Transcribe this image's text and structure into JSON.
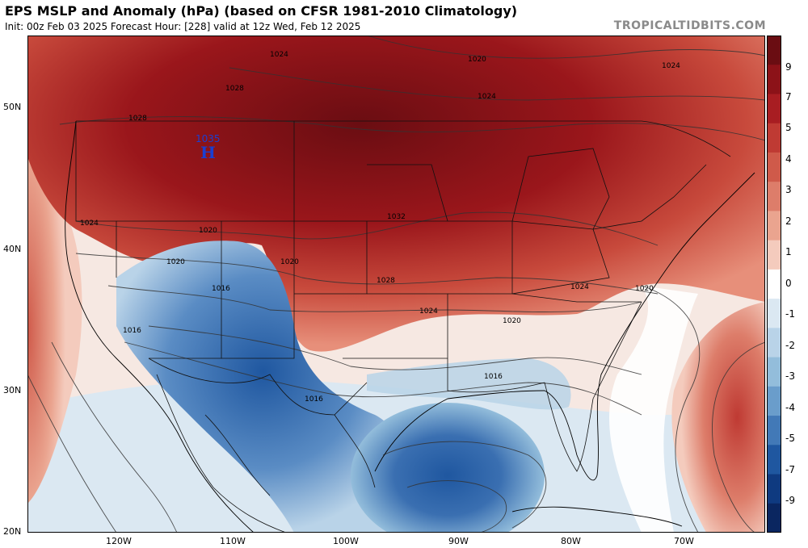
{
  "header": {
    "title": "EPS MSLP and Anomaly (hPa) (based on CFSR 1981-2010 Climatology)",
    "subtitle": "Init: 00z Feb 03 2025   Forecast Hour: [228]   valid at 12z Wed, Feb 12 2025",
    "brand": "TROPICALTIDBITS.COM"
  },
  "map": {
    "high_center": {
      "label": "H",
      "value": "1035"
    },
    "isobar_labels": [
      "1024",
      "1020",
      "1024",
      "1028",
      "1028",
      "1024",
      "1024",
      "1020",
      "1032",
      "1028",
      "1024",
      "1024",
      "1020",
      "1020",
      "1016",
      "1016",
      "1016",
      "1016",
      "1020",
      "1020"
    ],
    "lat_labels": [
      "50N",
      "40N",
      "30N",
      "20N"
    ],
    "lon_labels": [
      "120W",
      "110W",
      "100W",
      "90W",
      "80W",
      "70W"
    ]
  },
  "colorbar": {
    "labels": [
      "9",
      "7",
      "5",
      "4",
      "3",
      "2",
      "1",
      "0",
      "-1",
      "-2",
      "-3",
      "-4",
      "-5",
      "-7",
      "-9"
    ],
    "colors": [
      "#6a0d12",
      "#8c1218",
      "#a81d22",
      "#bf3a33",
      "#cf5a4a",
      "#dd7d6a",
      "#eaa48f",
      "#f4cbbd",
      "#ffffff",
      "#dbe8f2",
      "#b9d3e8",
      "#93bddb",
      "#6a9dcb",
      "#4279b7",
      "#1f57a0",
      "#0f3a80",
      "#0a2660"
    ]
  }
}
